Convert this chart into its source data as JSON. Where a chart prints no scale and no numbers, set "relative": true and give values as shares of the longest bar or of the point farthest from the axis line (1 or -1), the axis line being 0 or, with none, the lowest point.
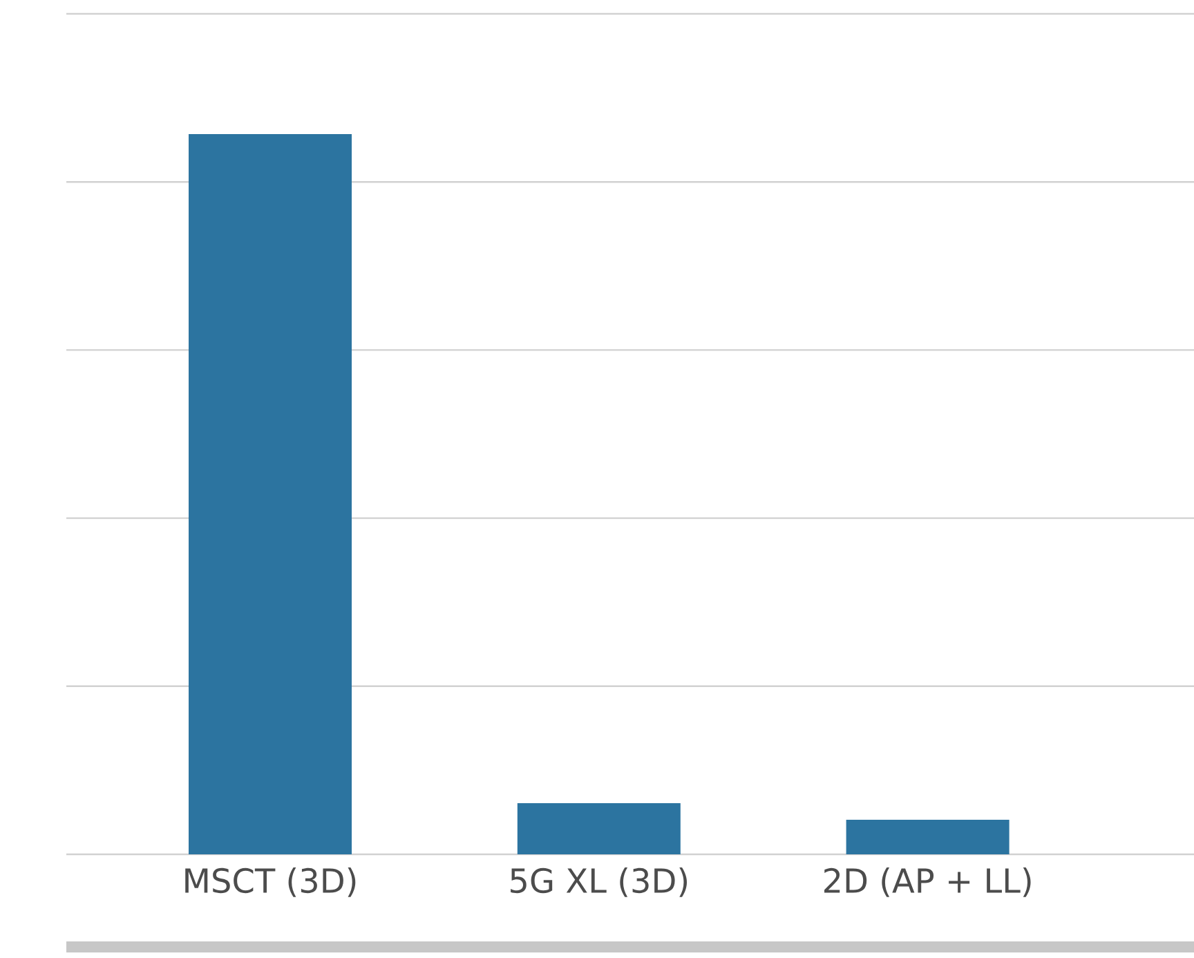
{
  "chart_data": {
    "type": "bar",
    "relative": true,
    "categories": [
      "MSCT (3D)",
      "5G XL (3D)",
      "2D (AP + LL)"
    ],
    "values": [
      1,
      0.071,
      0.048
    ],
    "color": "#2c74a0",
    "grid": "y"
  }
}
